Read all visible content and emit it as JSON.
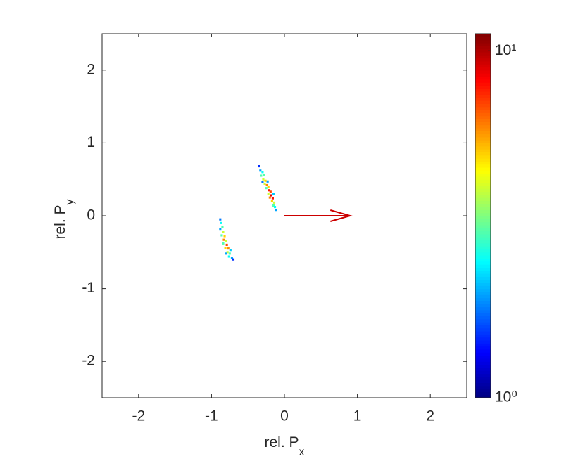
{
  "chart_data": {
    "type": "heatmap",
    "xlabel": {
      "text": "rel. P",
      "subscript": "x"
    },
    "ylabel": {
      "text": "rel. P",
      "subscript": "y"
    },
    "xlim": [
      -2.5,
      2.5
    ],
    "ylim": [
      -2.5,
      2.5
    ],
    "xticks": [
      -2,
      -1,
      0,
      1,
      2
    ],
    "yticks": [
      -2,
      -1,
      0,
      1,
      2
    ],
    "colormap": "jet",
    "color_scale": "log",
    "clim": [
      1,
      11.2
    ],
    "cticks": [
      {
        "value": 1,
        "label": "10⁰"
      },
      {
        "value": 10,
        "label": "10¹"
      }
    ],
    "x": [
      -0.35,
      -0.33,
      -0.3,
      -0.32,
      -0.28,
      -0.29,
      -0.26,
      -0.27,
      -0.24,
      -0.22,
      -0.25,
      -0.21,
      -0.19,
      -0.22,
      -0.18,
      -0.2,
      -0.16,
      -0.17,
      -0.14,
      -0.15,
      -0.13,
      -0.12,
      -0.23,
      -0.3,
      -0.15,
      -0.88,
      -0.87,
      -0.85,
      -0.88,
      -0.84,
      -0.86,
      -0.82,
      -0.83,
      -0.8,
      -0.84,
      -0.79,
      -0.81,
      -0.77,
      -0.78,
      -0.75,
      -0.76,
      -0.72,
      -0.7,
      -0.8,
      -0.74
    ],
    "y": [
      0.68,
      0.62,
      0.6,
      0.55,
      0.56,
      0.5,
      0.48,
      0.44,
      0.42,
      0.4,
      0.38,
      0.35,
      0.33,
      0.3,
      0.28,
      0.25,
      0.24,
      0.2,
      0.18,
      0.14,
      0.12,
      0.08,
      0.47,
      0.46,
      0.3,
      -0.05,
      -0.1,
      -0.15,
      -0.18,
      -0.22,
      -0.27,
      -0.28,
      -0.33,
      -0.35,
      -0.38,
      -0.4,
      -0.44,
      -0.45,
      -0.5,
      -0.52,
      -0.56,
      -0.58,
      -0.6,
      -0.52,
      -0.47
    ],
    "values": [
      1.5,
      2,
      2.5,
      3,
      3,
      4,
      5,
      4,
      6,
      5,
      3,
      8,
      7,
      4,
      9,
      6,
      8,
      5,
      4,
      3,
      2.5,
      2,
      2,
      1.8,
      2.2,
      1.8,
      2.5,
      3,
      2,
      4,
      3,
      5,
      6,
      4,
      3,
      7,
      5,
      6,
      4,
      3,
      2.5,
      2,
      1.5,
      2,
      2.2
    ],
    "arrow": {
      "x": [
        0,
        0.9
      ],
      "y": [
        0,
        0
      ],
      "color": "#cc0000"
    }
  }
}
